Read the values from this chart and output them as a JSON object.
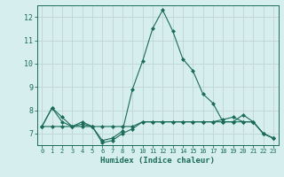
{
  "xlabel": "Humidex (Indice chaleur)",
  "ylabel": "",
  "background_color": "#d6eeee",
  "grid_color": "#c2d8d8",
  "line_color": "#1a6b5a",
  "x_values": [
    0,
    1,
    2,
    3,
    4,
    5,
    6,
    7,
    8,
    9,
    10,
    11,
    12,
    13,
    14,
    15,
    16,
    17,
    18,
    19,
    20,
    21,
    22,
    23
  ],
  "series": [
    [
      7.3,
      8.1,
      7.7,
      7.3,
      7.5,
      7.3,
      6.6,
      6.7,
      7.0,
      7.2,
      7.5,
      7.5,
      7.5,
      7.5,
      7.5,
      7.5,
      7.5,
      7.5,
      7.6,
      7.7,
      7.5,
      7.5,
      7.0,
      6.8
    ],
    [
      7.3,
      8.1,
      7.5,
      7.3,
      7.4,
      7.3,
      6.7,
      6.8,
      7.1,
      8.9,
      10.1,
      11.5,
      12.3,
      11.4,
      10.2,
      9.7,
      8.7,
      8.3,
      7.5,
      7.5,
      7.8,
      7.5,
      7.0,
      6.8
    ],
    [
      7.3,
      7.3,
      7.3,
      7.3,
      7.3,
      7.3,
      7.3,
      7.3,
      7.3,
      7.3,
      7.5,
      7.5,
      7.5,
      7.5,
      7.5,
      7.5,
      7.5,
      7.5,
      7.5,
      7.5,
      7.5,
      7.5,
      7.0,
      6.8
    ]
  ],
  "ylim": [
    6.5,
    12.5
  ],
  "yticks": [
    7,
    8,
    9,
    10,
    11,
    12
  ],
  "xlim": [
    -0.5,
    23.5
  ],
  "xticks": [
    0,
    1,
    2,
    3,
    4,
    5,
    6,
    7,
    8,
    9,
    10,
    11,
    12,
    13,
    14,
    15,
    16,
    17,
    18,
    19,
    20,
    21,
    22,
    23
  ]
}
